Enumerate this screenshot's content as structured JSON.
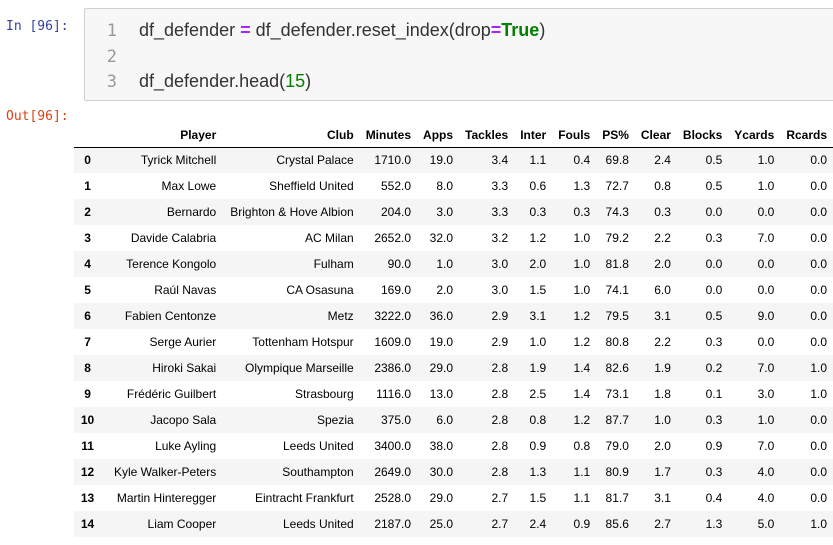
{
  "cell_in": {
    "prompt": "In [96]:",
    "line_numbers": [
      "1",
      "2",
      "3"
    ],
    "line1": {
      "a": "df_defender ",
      "op": "=",
      "b": " df_defender.reset_index(drop",
      "op2": "=",
      "kw": "True",
      "c": ")"
    },
    "line3": {
      "a": "df_defender.head(",
      "num": "15",
      "c": ")"
    }
  },
  "cell_out": {
    "prompt": "Out[96]:",
    "columns": [
      "Player",
      "Club",
      "Minutes",
      "Apps",
      "Tackles",
      "Inter",
      "Fouls",
      "PS%",
      "Clear",
      "Blocks",
      "Ycards",
      "Rcards"
    ],
    "rows": [
      {
        "index": "0",
        "cells": [
          "Tyrick Mitchell",
          "Crystal Palace",
          "1710.0",
          "19.0",
          "3.4",
          "1.1",
          "0.4",
          "69.8",
          "2.4",
          "0.5",
          "1.0",
          "0.0"
        ]
      },
      {
        "index": "1",
        "cells": [
          "Max Lowe",
          "Sheffield United",
          "552.0",
          "8.0",
          "3.3",
          "0.6",
          "1.3",
          "72.7",
          "0.8",
          "0.5",
          "1.0",
          "0.0"
        ]
      },
      {
        "index": "2",
        "cells": [
          "Bernardo",
          "Brighton & Hove Albion",
          "204.0",
          "3.0",
          "3.3",
          "0.3",
          "0.3",
          "74.3",
          "0.3",
          "0.0",
          "0.0",
          "0.0"
        ]
      },
      {
        "index": "3",
        "cells": [
          "Davide Calabria",
          "AC Milan",
          "2652.0",
          "32.0",
          "3.2",
          "1.2",
          "1.0",
          "79.2",
          "2.2",
          "0.3",
          "7.0",
          "0.0"
        ]
      },
      {
        "index": "4",
        "cells": [
          "Terence Kongolo",
          "Fulham",
          "90.0",
          "1.0",
          "3.0",
          "2.0",
          "1.0",
          "81.8",
          "2.0",
          "0.0",
          "0.0",
          "0.0"
        ]
      },
      {
        "index": "5",
        "cells": [
          "Raúl Navas",
          "CA Osasuna",
          "169.0",
          "2.0",
          "3.0",
          "1.5",
          "1.0",
          "74.1",
          "6.0",
          "0.0",
          "0.0",
          "0.0"
        ]
      },
      {
        "index": "6",
        "cells": [
          "Fabien Centonze",
          "Metz",
          "3222.0",
          "36.0",
          "2.9",
          "3.1",
          "1.2",
          "79.5",
          "3.1",
          "0.5",
          "9.0",
          "0.0"
        ]
      },
      {
        "index": "7",
        "cells": [
          "Serge Aurier",
          "Tottenham Hotspur",
          "1609.0",
          "19.0",
          "2.9",
          "1.0",
          "1.2",
          "80.8",
          "2.2",
          "0.3",
          "0.0",
          "0.0"
        ]
      },
      {
        "index": "8",
        "cells": [
          "Hiroki Sakai",
          "Olympique Marseille",
          "2386.0",
          "29.0",
          "2.8",
          "1.9",
          "1.4",
          "82.6",
          "1.9",
          "0.2",
          "7.0",
          "1.0"
        ]
      },
      {
        "index": "9",
        "cells": [
          "Frédéric Guilbert",
          "Strasbourg",
          "1116.0",
          "13.0",
          "2.8",
          "2.5",
          "1.4",
          "73.1",
          "1.8",
          "0.1",
          "3.0",
          "1.0"
        ]
      },
      {
        "index": "10",
        "cells": [
          "Jacopo Sala",
          "Spezia",
          "375.0",
          "6.0",
          "2.8",
          "0.8",
          "1.2",
          "87.7",
          "1.0",
          "0.3",
          "1.0",
          "0.0"
        ]
      },
      {
        "index": "11",
        "cells": [
          "Luke Ayling",
          "Leeds United",
          "3400.0",
          "38.0",
          "2.8",
          "0.9",
          "0.8",
          "79.0",
          "2.0",
          "0.9",
          "7.0",
          "0.0"
        ]
      },
      {
        "index": "12",
        "cells": [
          "Kyle Walker-Peters",
          "Southampton",
          "2649.0",
          "30.0",
          "2.8",
          "1.3",
          "1.1",
          "80.9",
          "1.7",
          "0.3",
          "4.0",
          "0.0"
        ]
      },
      {
        "index": "13",
        "cells": [
          "Martin Hinteregger",
          "Eintracht Frankfurt",
          "2528.0",
          "29.0",
          "2.7",
          "1.5",
          "1.1",
          "81.7",
          "3.1",
          "0.4",
          "4.0",
          "0.0"
        ]
      },
      {
        "index": "14",
        "cells": [
          "Liam Cooper",
          "Leeds United",
          "2187.0",
          "25.0",
          "2.7",
          "2.4",
          "0.9",
          "85.6",
          "2.7",
          "1.3",
          "5.0",
          "1.0"
        ]
      }
    ]
  }
}
